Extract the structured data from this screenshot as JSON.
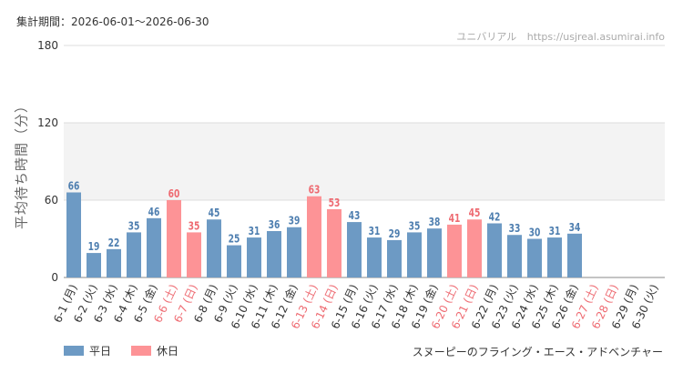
{
  "header": {
    "period": "集計期間：2026-06-01～2026-06-30",
    "site_name": "ユニバリアル",
    "site_url": "https://usjreal.asumirai.info"
  },
  "footer": {
    "attraction": "スヌーピーのフライング・エース・アドベンチャー"
  },
  "colors": {
    "weekday": "#6d9ac4",
    "holiday": "#fd9396",
    "weekday_text": "#4f7fb0",
    "holiday_text": "#ee6b72"
  },
  "chart_data": {
    "type": "bar",
    "ylabel": "平均待ち時間（分）",
    "ylim": [
      0,
      180
    ],
    "yticks": [
      0,
      60,
      120,
      180
    ],
    "grid": true,
    "legend": {
      "position": "bottom-left",
      "entries": [
        {
          "key": "weekday",
          "label": "平日"
        },
        {
          "key": "holiday",
          "label": "休日"
        }
      ]
    },
    "categories": [
      "6-1 (月)",
      "6-2 (火)",
      "6-3 (水)",
      "6-4 (木)",
      "6-5 (金)",
      "6-6 (土)",
      "6-7 (日)",
      "6-8 (月)",
      "6-9 (火)",
      "6-10 (水)",
      "6-11 (木)",
      "6-12 (金)",
      "6-13 (土)",
      "6-14 (日)",
      "6-15 (月)",
      "6-16 (火)",
      "6-17 (水)",
      "6-18 (木)",
      "6-19 (金)",
      "6-20 (土)",
      "6-21 (日)",
      "6-22 (月)",
      "6-23 (火)",
      "6-24 (水)",
      "6-25 (木)",
      "6-26 (金)",
      "6-27 (土)",
      "6-28 (日)",
      "6-29 (月)",
      "6-30 (火)"
    ],
    "values": [
      66,
      19,
      22,
      35,
      46,
      60,
      35,
      45,
      25,
      31,
      36,
      39,
      63,
      53,
      43,
      31,
      29,
      35,
      38,
      41,
      45,
      42,
      33,
      30,
      31,
      34,
      null,
      null,
      null,
      null
    ],
    "day_type": [
      "weekday",
      "weekday",
      "weekday",
      "weekday",
      "weekday",
      "holiday",
      "holiday",
      "weekday",
      "weekday",
      "weekday",
      "weekday",
      "weekday",
      "holiday",
      "holiday",
      "weekday",
      "weekday",
      "weekday",
      "weekday",
      "weekday",
      "holiday",
      "holiday",
      "weekday",
      "weekday",
      "weekday",
      "weekday",
      "weekday",
      "holiday",
      "holiday",
      "weekday",
      "weekday"
    ]
  }
}
